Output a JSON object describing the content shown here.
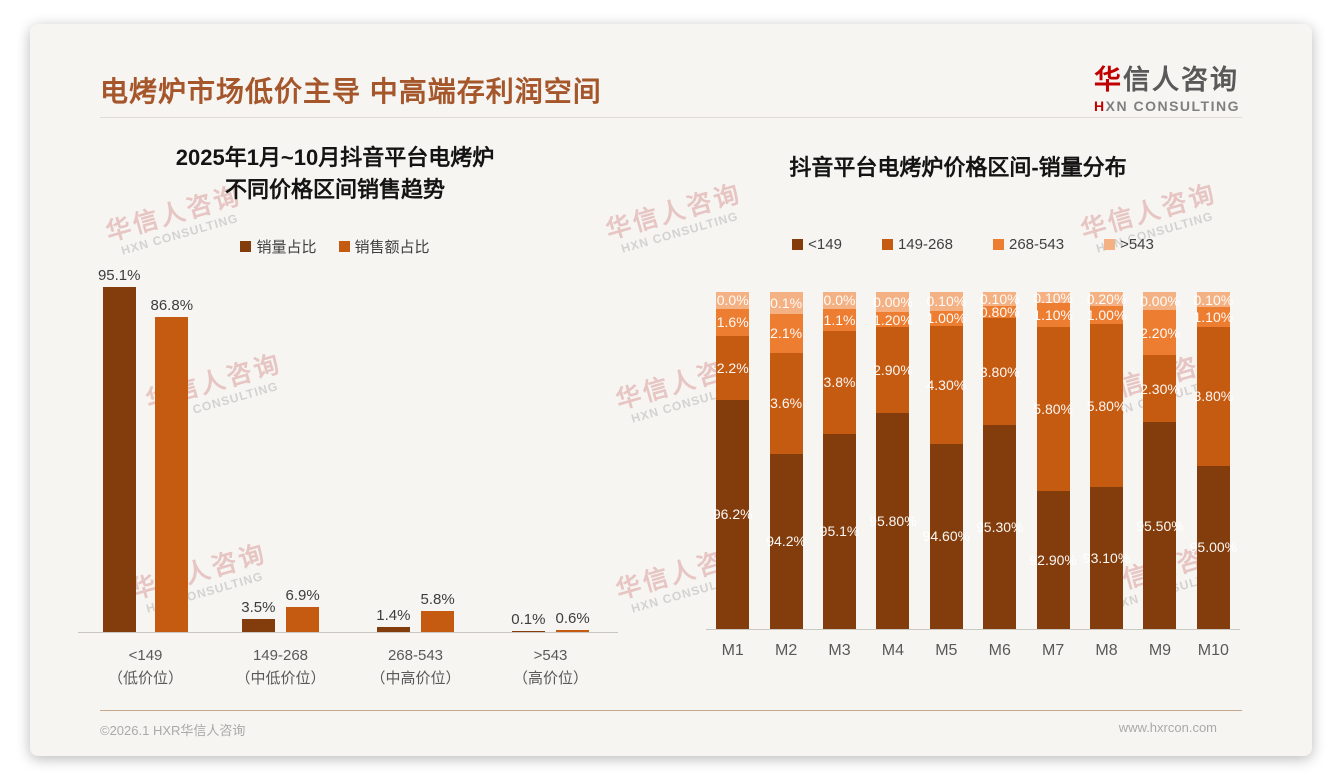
{
  "header": {
    "title": "电烤炉市场低价主导 中高端存利润空间"
  },
  "logo": {
    "cn_first": "华",
    "cn_rest": "信人咨询",
    "en_first": "H",
    "en_rest": "XN CONSULTING"
  },
  "watermark": {
    "cn": "华信人咨询",
    "en": "HXN CONSULTING"
  },
  "footer": {
    "left": "©2026.1 HXR华信人咨询",
    "right": "www.hxrcon.com"
  },
  "colors": {
    "title_brown": "#A5562B",
    "logo_red": "#C00000",
    "series_dark_brown": "#833C0B",
    "series_orange": "#C55A11",
    "series_light_orange": "#ED7D31",
    "series_pale_orange": "#F4B183",
    "footer_line_tan": "#C8A88C",
    "card_bg": "#F6F5F2"
  },
  "chart_data": [
    {
      "type": "bar",
      "stacked": false,
      "title": "2025年1月~10月抖音平台电烤炉 不同价格区间销售趋势",
      "title_lines": [
        "2025年1月~10月抖音平台电烤炉",
        "不同价格区间销售趋势"
      ],
      "categories": [
        "<149",
        "149-268",
        "268-543",
        ">543"
      ],
      "category_sublabels": [
        "（低价位）",
        "（中低价位）",
        "（中高价位）",
        "（高价位）"
      ],
      "series": [
        {
          "name": "销量占比",
          "color": "#833C0B",
          "values": [
            95.1,
            3.5,
            1.4,
            0.1
          ],
          "labels": [
            "95.1%",
            "3.5%",
            "1.4%",
            "0.1%"
          ]
        },
        {
          "name": "销售额占比",
          "color": "#C55A11",
          "values": [
            86.8,
            6.9,
            5.8,
            0.6
          ],
          "labels": [
            "86.8%",
            "6.9%",
            "5.8%",
            "0.6%"
          ]
        }
      ],
      "xlabel": "",
      "ylabel": "",
      "ylim": [
        0,
        100
      ],
      "grid": false,
      "legend_position": "top",
      "value_labels": "above bars"
    },
    {
      "type": "bar",
      "stacked": true,
      "title": "抖音平台电烤炉价格区间-销量分布",
      "categories": [
        "M1",
        "M2",
        "M3",
        "M4",
        "M5",
        "M6",
        "M7",
        "M8",
        "M9",
        "M10"
      ],
      "series": [
        {
          "name": "<149",
          "color": "#833C0B",
          "values": [
            96.2,
            94.2,
            95.1,
            95.8,
            94.6,
            95.3,
            92.9,
            93.1,
            95.5,
            95.0
          ],
          "labels": [
            "96.2%",
            "94.2%",
            "95.1%",
            "95.80%",
            "94.60%",
            "95.30%",
            "92.90%",
            "93.10%",
            "95.50%",
            "95.00%"
          ]
        },
        {
          "name": "149-268",
          "color": "#C55A11",
          "values": [
            2.2,
            3.6,
            3.8,
            2.9,
            4.3,
            3.8,
            5.8,
            5.8,
            2.3,
            3.8
          ],
          "labels": [
            "2.2%",
            "3.6%",
            "3.8%",
            "2.90%",
            "4.30%",
            "3.80%",
            "5.80%",
            "5.80%",
            "2.30%",
            "3.80%"
          ]
        },
        {
          "name": "268-543",
          "color": "#ED7D31",
          "values": [
            1.6,
            2.1,
            1.1,
            1.2,
            1.0,
            0.8,
            1.1,
            1.0,
            2.2,
            1.1
          ],
          "labels": [
            "1.6%",
            "2.1%",
            "1.1%",
            "1.20%",
            "1.00%",
            "0.80%",
            "1.10%",
            "1.00%",
            "2.20%",
            "1.10%"
          ]
        },
        {
          "name": ">543",
          "color": "#F4B183",
          "values": [
            0.0,
            0.1,
            0.0,
            0.0,
            0.1,
            0.1,
            0.1,
            0.2,
            0.0,
            0.1
          ],
          "labels": [
            "0.0%",
            "0.1%",
            "0.0%",
            "0.00%",
            "0.10%",
            "0.10%",
            "0.10%",
            "0.20%",
            "0.00%",
            "0.10%"
          ]
        }
      ],
      "xlabel": "",
      "ylabel": "",
      "ylim": [
        0,
        100
      ],
      "grid": false,
      "legend_position": "top",
      "value_labels": "white, centered in segments",
      "display_note": "source chart segments are not drawn to scale; visual heights below (% of bar, bottom→top)",
      "display_heights_pct": [
        [
          68,
          19,
          8,
          5
        ],
        [
          52,
          30,
          11.5,
          6.5
        ],
        [
          58,
          30.5,
          6.5,
          5
        ],
        [
          64,
          25.5,
          4.5,
          6
        ],
        [
          55,
          35,
          4.5,
          5.5
        ],
        [
          60.5,
          31.8,
          3.5,
          4.2
        ],
        [
          41,
          48.5,
          7.2,
          3.3
        ],
        [
          42,
          48.5,
          5.3,
          4.2
        ],
        [
          61.3,
          20,
          13.3,
          5.4
        ],
        [
          48.5,
          41,
          6,
          4.5
        ]
      ]
    }
  ]
}
